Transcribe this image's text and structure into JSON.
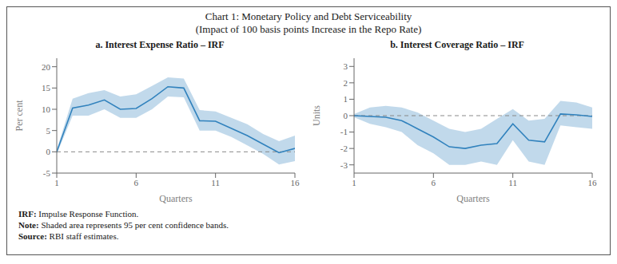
{
  "title": "Chart 1: Monetary Policy and Debt Serviceability",
  "subtitle": "(Impact of 100 basis points Increase in the Repo Rate)",
  "annotations": [
    "IRF: Impulse Response Function.",
    "Note: Shaded area represents 95 per cent confidence bands.",
    "Source: RBI staff estimates."
  ],
  "chart_data": [
    {
      "type": "line",
      "title": "a. Interest Expense Ratio – IRF",
      "ylabel": "Per cent",
      "xlabel": "Quarters",
      "grid": false,
      "x": [
        1,
        2,
        3,
        4,
        5,
        6,
        7,
        8,
        9,
        10,
        11,
        12,
        13,
        14,
        15,
        16
      ],
      "xlim": [
        1,
        16
      ],
      "xticks": [
        1,
        6,
        11,
        16
      ],
      "ylim": [
        -5,
        22
      ],
      "yticks": [
        -5,
        0,
        5,
        10,
        15,
        20
      ],
      "hline": 0,
      "values": [
        0.0,
        10.3,
        11.0,
        12.2,
        10.0,
        10.2,
        12.5,
        15.3,
        15.0,
        7.3,
        7.2,
        5.5,
        3.8,
        1.8,
        -0.2,
        0.8
      ],
      "upper": [
        0.5,
        12.5,
        13.8,
        14.5,
        13.0,
        13.5,
        15.5,
        17.5,
        17.2,
        9.8,
        9.5,
        8.0,
        6.5,
        4.2,
        2.5,
        3.8
      ],
      "lower": [
        -0.5,
        8.5,
        8.5,
        10.0,
        8.0,
        8.0,
        10.0,
        13.0,
        12.8,
        5.0,
        5.0,
        3.5,
        1.5,
        -0.5,
        -3.0,
        -2.2
      ]
    },
    {
      "type": "line",
      "title": "b. Interest Coverage Ratio – IRF",
      "ylabel": "Units",
      "xlabel": "Quarters",
      "grid": false,
      "x": [
        1,
        2,
        3,
        4,
        5,
        6,
        7,
        8,
        9,
        10,
        11,
        12,
        13,
        14,
        15,
        16
      ],
      "xlim": [
        1,
        16
      ],
      "xticks": [
        1,
        6,
        11,
        16
      ],
      "ylim": [
        -3.5,
        3.5
      ],
      "yticks": [
        -3,
        -2,
        -1,
        0,
        1,
        2,
        3
      ],
      "hline": 0,
      "values": [
        0.0,
        -0.05,
        -0.1,
        -0.3,
        -0.8,
        -1.3,
        -1.9,
        -2.0,
        -1.8,
        -1.7,
        -0.5,
        -1.5,
        -1.6,
        0.1,
        0.05,
        -0.05
      ],
      "upper": [
        0.1,
        0.5,
        0.6,
        0.5,
        0.2,
        -0.3,
        -0.8,
        -1.0,
        -0.8,
        -0.2,
        0.4,
        -0.3,
        -0.2,
        0.9,
        0.8,
        0.5
      ],
      "lower": [
        -0.1,
        -0.5,
        -0.7,
        -1.0,
        -1.8,
        -2.3,
        -3.0,
        -3.0,
        -2.8,
        -3.0,
        -1.5,
        -2.8,
        -3.0,
        -0.6,
        -0.7,
        -0.8
      ]
    }
  ]
}
